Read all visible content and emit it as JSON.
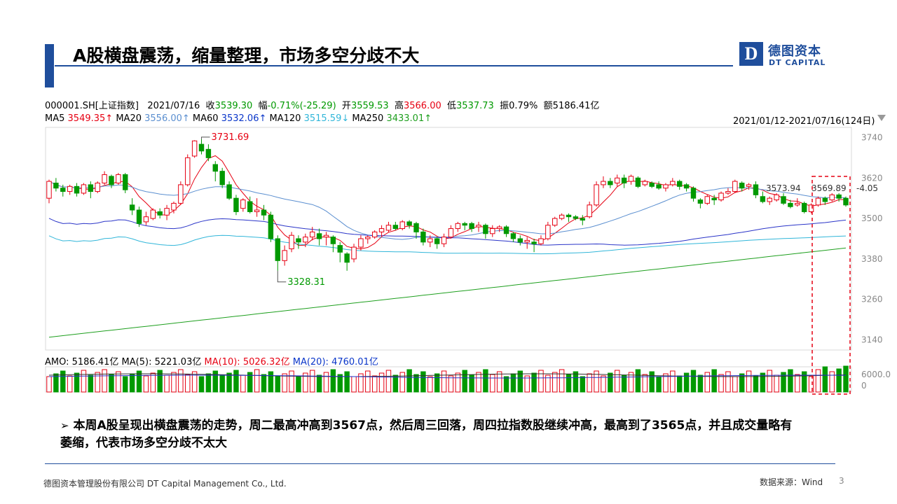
{
  "header": {
    "title": "A股横盘震荡，缩量整理，市场多空分歧不大",
    "logo_mark": "D",
    "logo_cn": "德图资本",
    "logo_en": "DT CAPITAL"
  },
  "quote": {
    "code": "000001.SH[上证指数]",
    "date": "2021/07/16",
    "close_label": "收",
    "close": "3539.30",
    "change_label": "幅",
    "change": "-0.71%(-25.29)",
    "open_label": "开",
    "open": "3559.53",
    "high_label": "高",
    "high": "3566.00",
    "low_label": "低",
    "low": "3537.73",
    "amp_label": "振",
    "amp": "0.79%",
    "amount_label": "额",
    "amount": "5186.41亿"
  },
  "ma_line": {
    "ma5_label": "MA5",
    "ma5": "3549.35↑",
    "ma20_label": "MA20",
    "ma20": "3556.00↑",
    "ma60_label": "MA60",
    "ma60": "3532.06↑",
    "ma120_label": "MA120",
    "ma120": "3515.59↓",
    "ma250_label": "MA250",
    "ma250": "3433.01↑"
  },
  "range_text": "2021/01/12-2021/07/16(124日)",
  "volume_line": {
    "amo_label": "AMO:",
    "amo": "5186.41亿",
    "ma5_label": "MA(5):",
    "ma5": "5221.03亿",
    "ma10_label": "MA(10):",
    "ma10": "5026.32亿",
    "ma20_label": "MA(20):",
    "ma20": "4760.01亿"
  },
  "chart_data": {
    "type": "candlestick",
    "y_axis_ticks": [
      "3740",
      "3620",
      "3500",
      "3380",
      "3260",
      "3140"
    ],
    "ylim": [
      3110,
      3770
    ],
    "volume_axis_ticks": [
      "6000.0",
      "0"
    ],
    "annotations": {
      "max": "3731.69",
      "min": "3328.31",
      "last_a": "3573.94",
      "last_b": "3569.89",
      "last_c": "-4.05"
    },
    "candles": [
      [
        3560,
        3610,
        3545,
        3615
      ],
      [
        3605,
        3590,
        3580,
        3620
      ],
      [
        3590,
        3580,
        3565,
        3600
      ],
      [
        3580,
        3595,
        3570,
        3600
      ],
      [
        3595,
        3575,
        3565,
        3605
      ],
      [
        3575,
        3600,
        3570,
        3605
      ],
      [
        3600,
        3580,
        3560,
        3610
      ],
      [
        3580,
        3605,
        3575,
        3610
      ],
      [
        3605,
        3630,
        3600,
        3640
      ],
      [
        3625,
        3600,
        3590,
        3630
      ],
      [
        3605,
        3630,
        3600,
        3635
      ],
      [
        3630,
        3585,
        3575,
        3635
      ],
      [
        3540,
        3525,
        3510,
        3560
      ],
      [
        3525,
        3485,
        3475,
        3535
      ],
      [
        3490,
        3505,
        3480,
        3520
      ],
      [
        3500,
        3525,
        3495,
        3530
      ],
      [
        3520,
        3510,
        3500,
        3530
      ],
      [
        3510,
        3530,
        3495,
        3540
      ],
      [
        3525,
        3545,
        3515,
        3550
      ],
      [
        3545,
        3600,
        3540,
        3610
      ],
      [
        3600,
        3680,
        3595,
        3690
      ],
      [
        3685,
        3730,
        3680,
        3732
      ],
      [
        3720,
        3700,
        3690,
        3735
      ],
      [
        3705,
        3680,
        3670,
        3720
      ],
      [
        3660,
        3640,
        3610,
        3670
      ],
      [
        3640,
        3600,
        3590,
        3650
      ],
      [
        3600,
        3560,
        3555,
        3610
      ],
      [
        3560,
        3520,
        3510,
        3570
      ],
      [
        3530,
        3555,
        3520,
        3560
      ],
      [
        3550,
        3520,
        3515,
        3565
      ],
      [
        3520,
        3525,
        3505,
        3560
      ],
      [
        3525,
        3510,
        3495,
        3540
      ],
      [
        3510,
        3440,
        3430,
        3520
      ],
      [
        3440,
        3375,
        3345,
        3450
      ],
      [
        3375,
        3405,
        3360,
        3420
      ],
      [
        3410,
        3450,
        3400,
        3460
      ],
      [
        3440,
        3430,
        3410,
        3450
      ],
      [
        3430,
        3445,
        3415,
        3455
      ],
      [
        3445,
        3460,
        3435,
        3475
      ],
      [
        3455,
        3440,
        3420,
        3470
      ],
      [
        3445,
        3450,
        3420,
        3460
      ],
      [
        3445,
        3425,
        3400,
        3450
      ],
      [
        3420,
        3400,
        3370,
        3430
      ],
      [
        3395,
        3370,
        3345,
        3400
      ],
      [
        3380,
        3415,
        3370,
        3425
      ],
      [
        3415,
        3440,
        3405,
        3450
      ],
      [
        3440,
        3445,
        3425,
        3450
      ],
      [
        3445,
        3460,
        3440,
        3465
      ],
      [
        3460,
        3470,
        3445,
        3480
      ],
      [
        3465,
        3480,
        3460,
        3490
      ],
      [
        3480,
        3470,
        3465,
        3490
      ],
      [
        3470,
        3490,
        3465,
        3495
      ],
      [
        3490,
        3480,
        3470,
        3495
      ],
      [
        3485,
        3460,
        3440,
        3490
      ],
      [
        3460,
        3430,
        3420,
        3470
      ],
      [
        3430,
        3440,
        3415,
        3450
      ],
      [
        3440,
        3425,
        3410,
        3445
      ],
      [
        3425,
        3445,
        3415,
        3455
      ],
      [
        3445,
        3470,
        3440,
        3480
      ],
      [
        3470,
        3485,
        3460,
        3490
      ],
      [
        3485,
        3480,
        3465,
        3490
      ],
      [
        3485,
        3470,
        3460,
        3490
      ],
      [
        3475,
        3480,
        3460,
        3490
      ],
      [
        3480,
        3455,
        3440,
        3485
      ],
      [
        3455,
        3470,
        3445,
        3480
      ],
      [
        3470,
        3475,
        3460,
        3480
      ],
      [
        3475,
        3455,
        3445,
        3480
      ],
      [
        3455,
        3440,
        3430,
        3460
      ],
      [
        3440,
        3430,
        3420,
        3450
      ],
      [
        3430,
        3435,
        3410,
        3445
      ],
      [
        3430,
        3425,
        3400,
        3440
      ],
      [
        3425,
        3440,
        3420,
        3450
      ],
      [
        3440,
        3480,
        3435,
        3490
      ],
      [
        3480,
        3500,
        3475,
        3505
      ],
      [
        3500,
        3510,
        3495,
        3515
      ],
      [
        3510,
        3505,
        3490,
        3515
      ],
      [
        3505,
        3500,
        3495,
        3510
      ],
      [
        3500,
        3495,
        3480,
        3510
      ],
      [
        3505,
        3540,
        3500,
        3550
      ],
      [
        3540,
        3600,
        3535,
        3610
      ],
      [
        3600,
        3610,
        3590,
        3625
      ],
      [
        3610,
        3600,
        3590,
        3620
      ],
      [
        3605,
        3620,
        3595,
        3630
      ],
      [
        3620,
        3605,
        3590,
        3630
      ],
      [
        3610,
        3625,
        3600,
        3630
      ],
      [
        3620,
        3595,
        3590,
        3625
      ],
      [
        3600,
        3610,
        3595,
        3615
      ],
      [
        3605,
        3595,
        3590,
        3610
      ],
      [
        3600,
        3590,
        3585,
        3610
      ],
      [
        3590,
        3600,
        3580,
        3605
      ],
      [
        3600,
        3610,
        3595,
        3620
      ],
      [
        3610,
        3595,
        3585,
        3615
      ],
      [
        3600,
        3590,
        3580,
        3605
      ],
      [
        3590,
        3560,
        3550,
        3595
      ],
      [
        3555,
        3545,
        3530,
        3560
      ],
      [
        3545,
        3565,
        3540,
        3570
      ],
      [
        3560,
        3555,
        3540,
        3570
      ],
      [
        3555,
        3575,
        3550,
        3580
      ],
      [
        3575,
        3580,
        3570,
        3590
      ],
      [
        3580,
        3610,
        3575,
        3615
      ],
      [
        3605,
        3590,
        3580,
        3610
      ],
      [
        3595,
        3600,
        3585,
        3605
      ],
      [
        3600,
        3570,
        3560,
        3610
      ],
      [
        3565,
        3550,
        3545,
        3580
      ],
      [
        3550,
        3560,
        3540,
        3565
      ],
      [
        3555,
        3570,
        3550,
        3575
      ],
      [
        3565,
        3545,
        3540,
        3575
      ],
      [
        3545,
        3535,
        3530,
        3555
      ],
      [
        3540,
        3545,
        3535,
        3560
      ],
      [
        3545,
        3520,
        3515,
        3550
      ],
      [
        3520,
        3540,
        3515,
        3545
      ],
      [
        3540,
        3560,
        3535,
        3565
      ],
      [
        3560,
        3550,
        3540,
        3565
      ],
      [
        3555,
        3570,
        3550,
        3575
      ],
      [
        3570,
        3560,
        3550,
        3575
      ],
      [
        3560,
        3540,
        3535,
        3565
      ]
    ]
  },
  "bullet_text": "本周A股呈现出横盘震荡的走势，周二最高冲高到3567点，然后周三回落，周四拉指数股继续冲高，最高到了3565点，并且成交量略有萎缩，代表市场多空分歧不太大",
  "footer": {
    "company": "德图资本管理股份有限公司  DT Capital Management Co., Ltd.",
    "source": "数据来源：Wind",
    "page": "3"
  },
  "colors": {
    "brand": "#1f4e9c",
    "up": "#e60012",
    "down": "#009900",
    "ma20": "#5b8fd0",
    "ma60": "#2a34c8",
    "ma120": "#31b6d9",
    "ma250": "#1e9f1e",
    "highlight": "#e60012"
  }
}
